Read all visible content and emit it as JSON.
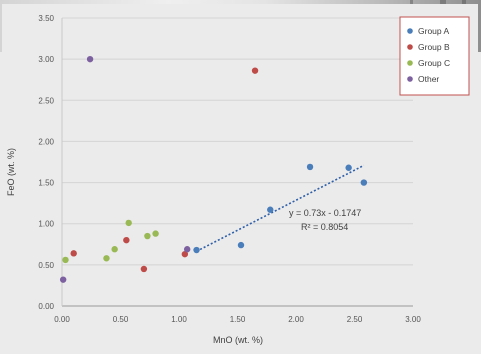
{
  "chart_data": {
    "type": "scatter",
    "xlabel": "MnO (wt. %)",
    "ylabel": "FeO (wt. %)",
    "xlim": [
      0,
      3.0
    ],
    "ylim": [
      0,
      3.5
    ],
    "x_ticks": [
      "0.00",
      "0.50",
      "1.00",
      "1.50",
      "2.00",
      "2.50",
      "3.00"
    ],
    "y_ticks": [
      "0.00",
      "0.50",
      "1.00",
      "1.50",
      "2.00",
      "2.50",
      "3.00",
      "3.50"
    ],
    "x_tick_values": [
      0,
      0.5,
      1.0,
      1.5,
      2.0,
      2.5,
      3.0
    ],
    "y_tick_values": [
      0,
      0.5,
      1.0,
      1.5,
      2.0,
      2.5,
      3.0,
      3.5
    ],
    "grid": "horizontal",
    "legend_position": "top-right",
    "series": [
      {
        "name": "Group A",
        "color": "#4a7ebb",
        "points": [
          [
            1.15,
            0.68
          ],
          [
            1.53,
            0.74
          ],
          [
            1.78,
            1.17
          ],
          [
            2.12,
            1.69
          ],
          [
            2.45,
            1.68
          ],
          [
            2.58,
            1.5
          ]
        ]
      },
      {
        "name": "Group B",
        "color": "#be4b48",
        "points": [
          [
            0.1,
            0.64
          ],
          [
            0.55,
            0.8
          ],
          [
            0.7,
            0.45
          ],
          [
            1.05,
            0.63
          ],
          [
            1.65,
            2.86
          ]
        ]
      },
      {
        "name": "Group C",
        "color": "#98b954",
        "points": [
          [
            0.03,
            0.56
          ],
          [
            0.38,
            0.58
          ],
          [
            0.45,
            0.69
          ],
          [
            0.57,
            1.01
          ],
          [
            0.73,
            0.85
          ],
          [
            0.8,
            0.88
          ]
        ]
      },
      {
        "name": "Other",
        "color": "#7d60a0",
        "points": [
          [
            0.01,
            0.32
          ],
          [
            0.24,
            3.0
          ],
          [
            1.07,
            0.69
          ]
        ]
      }
    ],
    "trendline": {
      "series": "Group A",
      "slope": 0.73,
      "intercept": -0.1747,
      "x_range": [
        1.15,
        2.58
      ],
      "color": "#2e5fa8",
      "equation": "y = 0.73x - 0.1747",
      "r_squared": "R² = 0.8054"
    }
  }
}
